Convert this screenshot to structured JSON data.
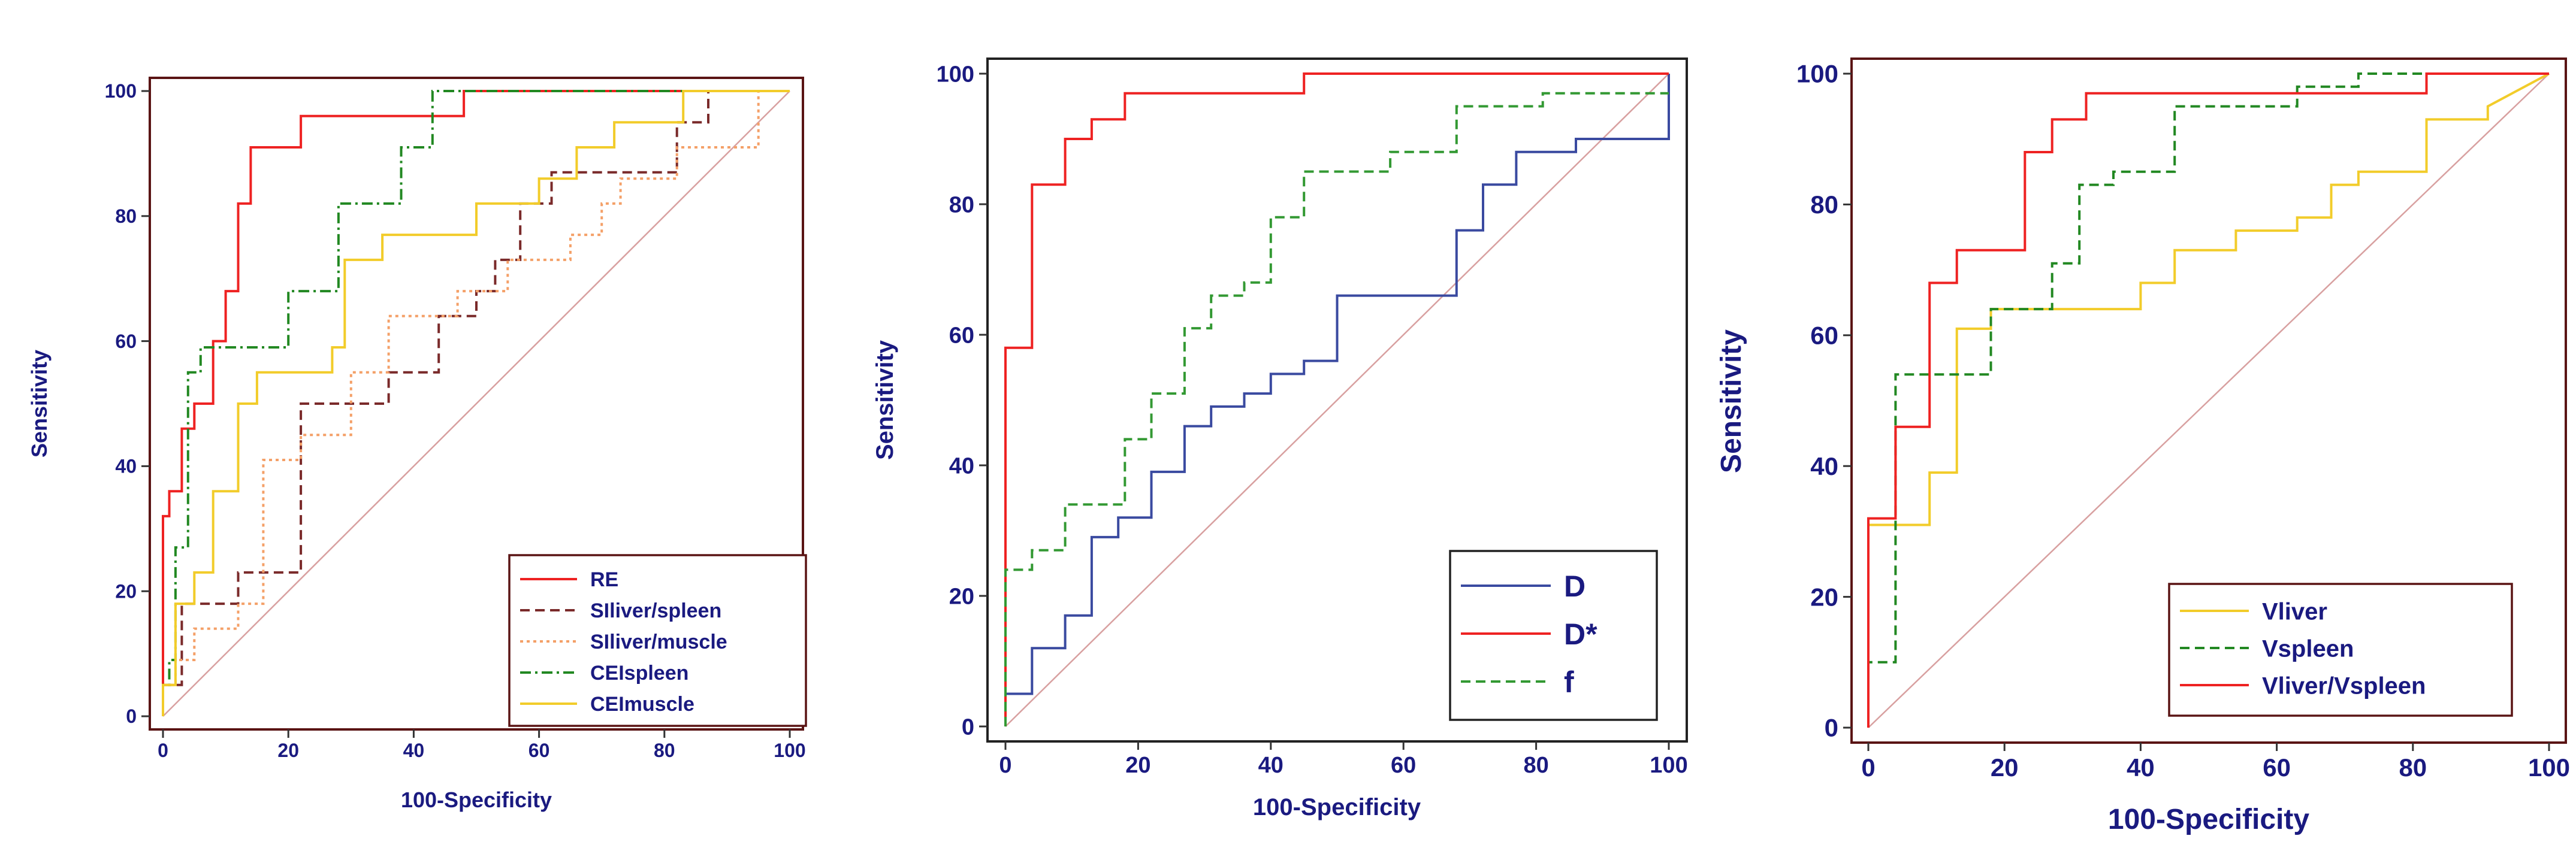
{
  "chart_data": [
    {
      "type": "line",
      "xlabel": "100-Specificity",
      "ylabel": "Sensitivity",
      "xlim": [
        0,
        100
      ],
      "ylim": [
        0,
        100
      ],
      "xticks": [
        "0",
        "20",
        "40",
        "60",
        "80",
        "100"
      ],
      "yticks": [
        "0",
        "20",
        "40",
        "60",
        "80",
        "100"
      ],
      "grid": false,
      "legend_position": "bottom-right",
      "frame_color": "#5a1414",
      "diagonal_color": "#d8a0a0",
      "series": [
        {
          "name": "RE",
          "color": "#ee2222",
          "dash": "solid",
          "x": [
            0,
            0,
            1,
            1,
            3,
            3,
            5,
            5,
            8,
            8,
            10,
            10,
            12,
            12,
            14,
            14,
            22,
            22,
            48,
            48,
            54,
            54,
            100
          ],
          "y": [
            0,
            32,
            32,
            36,
            36,
            46,
            46,
            50,
            50,
            60,
            60,
            68,
            68,
            82,
            82,
            91,
            91,
            96,
            96,
            100,
            100,
            100,
            100
          ]
        },
        {
          "name": "SIliver/spleen",
          "color": "#7a2a2a",
          "dash": "dashed",
          "x": [
            0,
            0,
            3,
            3,
            12,
            12,
            14,
            14,
            19,
            19,
            22,
            22,
            36,
            36,
            44,
            44,
            50,
            50,
            53,
            53,
            57,
            57,
            62,
            62,
            72,
            72,
            82,
            82,
            87,
            87,
            100
          ],
          "y": [
            0,
            5,
            5,
            18,
            18,
            23,
            23,
            23,
            23,
            23,
            23,
            50,
            50,
            55,
            55,
            64,
            64,
            68,
            68,
            73,
            73,
            82,
            82,
            87,
            87,
            87,
            87,
            95,
            95,
            100,
            100
          ]
        },
        {
          "name": "SIliver/muscle",
          "color": "#f4a068",
          "dash": "dotted",
          "x": [
            0,
            0,
            2,
            2,
            5,
            5,
            8,
            8,
            12,
            12,
            16,
            16,
            20,
            20,
            22,
            22,
            30,
            30,
            36,
            36,
            47,
            47,
            55,
            55,
            65,
            65,
            70,
            70,
            73,
            73,
            82,
            82,
            95,
            95,
            100
          ],
          "y": [
            0,
            5,
            5,
            9,
            9,
            14,
            14,
            14,
            14,
            18,
            18,
            41,
            41,
            41,
            41,
            45,
            45,
            55,
            55,
            64,
            64,
            68,
            68,
            73,
            73,
            77,
            77,
            82,
            82,
            86,
            86,
            91,
            91,
            100,
            100
          ]
        },
        {
          "name": "CEIspleen",
          "color": "#228822",
          "dash": "dashdot",
          "x": [
            0,
            0,
            1,
            1,
            2,
            2,
            4,
            4,
            6,
            6,
            14,
            14,
            20,
            20,
            28,
            28,
            38,
            38,
            43,
            43,
            100
          ],
          "y": [
            0,
            5,
            5,
            9,
            9,
            27,
            27,
            55,
            55,
            59,
            59,
            59,
            59,
            68,
            68,
            82,
            82,
            91,
            91,
            100,
            100
          ]
        },
        {
          "name": "CEImuscle",
          "color": "#f2cc2a",
          "dash": "solid",
          "x": [
            0,
            0,
            2,
            2,
            5,
            5,
            8,
            8,
            12,
            12,
            15,
            15,
            20,
            20,
            27,
            27,
            29,
            29,
            35,
            35,
            50,
            50,
            60,
            60,
            66,
            66,
            72,
            72,
            78,
            78,
            83,
            83,
            100
          ],
          "y": [
            0,
            5,
            5,
            18,
            18,
            23,
            23,
            36,
            36,
            50,
            50,
            55,
            55,
            55,
            55,
            59,
            59,
            73,
            73,
            77,
            77,
            82,
            82,
            86,
            86,
            91,
            91,
            95,
            95,
            95,
            95,
            100,
            100
          ]
        }
      ]
    },
    {
      "type": "line",
      "xlabel": "100-Specificity",
      "ylabel": "Sensitivity",
      "xlim": [
        0,
        100
      ],
      "ylim": [
        0,
        100
      ],
      "xticks": [
        "0",
        "20",
        "40",
        "60",
        "80",
        "100"
      ],
      "yticks": [
        "0",
        "20",
        "40",
        "60",
        "80",
        "100"
      ],
      "grid": false,
      "legend_position": "bottom-right",
      "frame_color": "#222222",
      "diagonal_color": "#d8a0a0",
      "series": [
        {
          "name": "D",
          "color": "#3a4aa0",
          "dash": "solid",
          "x": [
            0,
            0,
            4,
            4,
            9,
            9,
            13,
            13,
            17,
            17,
            22,
            22,
            27,
            27,
            31,
            31,
            36,
            36,
            40,
            40,
            45,
            45,
            50,
            50,
            68,
            68,
            72,
            72,
            77,
            77,
            86,
            86,
            91,
            91,
            100,
            100
          ],
          "y": [
            0,
            5,
            5,
            12,
            12,
            17,
            17,
            29,
            29,
            32,
            32,
            39,
            39,
            46,
            46,
            49,
            49,
            51,
            51,
            54,
            54,
            56,
            56,
            66,
            66,
            76,
            76,
            83,
            83,
            88,
            88,
            90,
            90,
            90,
            90,
            100
          ]
        },
        {
          "name": "D*",
          "color": "#ee2222",
          "dash": "solid",
          "x": [
            0,
            0,
            4,
            4,
            9,
            9,
            13,
            13,
            18,
            18,
            45,
            45,
            100
          ],
          "y": [
            0,
            58,
            58,
            83,
            83,
            90,
            90,
            93,
            93,
            97,
            97,
            100,
            100
          ]
        },
        {
          "name": "f",
          "color": "#339933",
          "dash": "dashed",
          "x": [
            0,
            0,
            4,
            4,
            9,
            9,
            18,
            18,
            22,
            22,
            27,
            27,
            31,
            31,
            36,
            36,
            40,
            40,
            45,
            45,
            58,
            58,
            68,
            68,
            81,
            81,
            100
          ],
          "y": [
            0,
            24,
            24,
            27,
            27,
            34,
            34,
            44,
            44,
            51,
            51,
            61,
            61,
            66,
            66,
            68,
            68,
            78,
            78,
            85,
            85,
            88,
            88,
            95,
            95,
            97,
            97
          ]
        }
      ]
    },
    {
      "type": "line",
      "xlabel": "100-Specificity",
      "ylabel": "Sensitivity",
      "xlim": [
        0,
        100
      ],
      "ylim": [
        0,
        100
      ],
      "xticks": [
        "0",
        "20",
        "40",
        "60",
        "80",
        "100"
      ],
      "yticks": [
        "0",
        "20",
        "40",
        "60",
        "80",
        "100"
      ],
      "grid": false,
      "legend_position": "bottom-right",
      "frame_color": "#5a1414",
      "diagonal_color": "#d8a0a0",
      "series": [
        {
          "name": "Vliver",
          "color": "#f2cc2a",
          "dash": "solid",
          "x": [
            0,
            0,
            4,
            4,
            9,
            9,
            13,
            13,
            18,
            18,
            40,
            40,
            45,
            45,
            54,
            54,
            63,
            63,
            68,
            68,
            72,
            72,
            77,
            77,
            82,
            82,
            91,
            91,
            100
          ],
          "y": [
            0,
            31,
            31,
            31,
            31,
            39,
            39,
            61,
            61,
            64,
            64,
            68,
            68,
            73,
            73,
            76,
            76,
            78,
            78,
            83,
            83,
            85,
            85,
            85,
            85,
            93,
            93,
            95,
            100
          ]
        },
        {
          "name": "Vspleen",
          "color": "#228822",
          "dash": "dashed",
          "x": [
            0,
            0,
            4,
            4,
            18,
            18,
            27,
            27,
            31,
            31,
            36,
            36,
            45,
            45,
            63,
            63,
            72,
            72,
            100
          ],
          "y": [
            0,
            10,
            10,
            54,
            54,
            64,
            64,
            71,
            71,
            83,
            83,
            85,
            85,
            95,
            95,
            98,
            98,
            100,
            100
          ]
        },
        {
          "name": "Vliver/Vspleen",
          "color": "#ee2222",
          "dash": "solid",
          "x": [
            0,
            0,
            4,
            4,
            9,
            9,
            13,
            13,
            23,
            23,
            27,
            27,
            32,
            32,
            82,
            82,
            100
          ],
          "y": [
            0,
            32,
            32,
            46,
            46,
            68,
            68,
            73,
            73,
            88,
            88,
            93,
            93,
            97,
            97,
            100,
            100
          ]
        }
      ]
    }
  ]
}
